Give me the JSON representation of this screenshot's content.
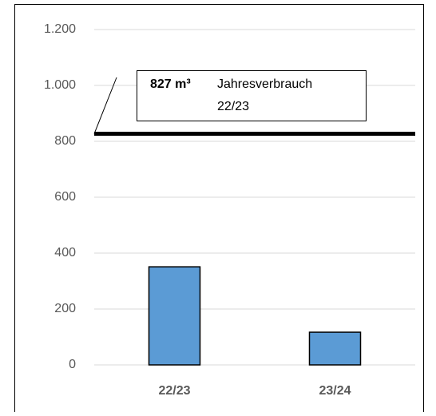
{
  "chart_data": {
    "type": "bar",
    "categories": [
      "22/23",
      "23/24"
    ],
    "values": [
      351,
      117
    ],
    "color": "#5b9bd5",
    "ylim": [
      0,
      1200
    ],
    "yticks": [
      0,
      200,
      400,
      600,
      800,
      {
        "value": 1000,
        "label": "1.000"
      },
      {
        "value": 1200,
        "label": "1.200"
      }
    ],
    "grid": true,
    "reference_line": {
      "value": 827,
      "label": "827 m³",
      "text": [
        "Jahresverbrauch",
        "22/23"
      ]
    }
  }
}
